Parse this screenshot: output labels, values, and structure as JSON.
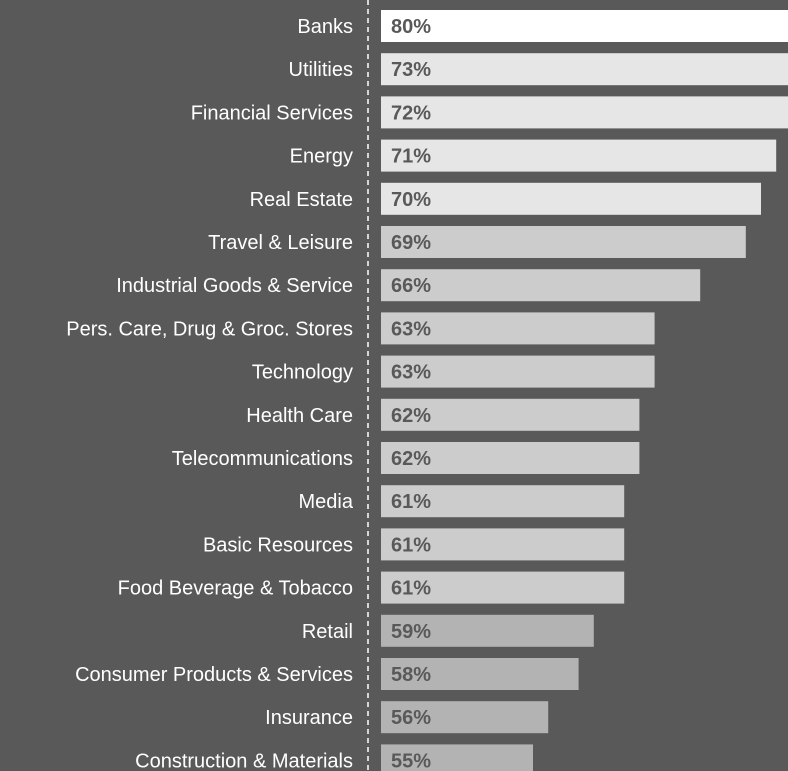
{
  "chart_data": {
    "type": "bar",
    "orientation": "horizontal",
    "categories": [
      "Banks",
      "Utilities",
      "Financial Services",
      "Energy",
      "Real Estate",
      "Travel & Leisure",
      "Industrial Goods & Service",
      "Pers. Care, Drug & Groc. Stores",
      "Technology",
      "Health Care",
      "Telecommunications",
      "Media",
      "Basic Resources",
      "Food Beverage & Tobacco",
      "Retail",
      "Consumer Products & Services",
      "Insurance",
      "Construction & Materials"
    ],
    "values": [
      80,
      73,
      72,
      71,
      70,
      69,
      66,
      63,
      63,
      62,
      62,
      61,
      61,
      61,
      59,
      58,
      56,
      55
    ],
    "value_labels": [
      "80%",
      "73%",
      "72%",
      "71%",
      "70%",
      "69%",
      "66%",
      "63%",
      "63%",
      "62%",
      "62%",
      "61%",
      "61%",
      "61%",
      "59%",
      "58%",
      "56%",
      "55%"
    ],
    "xlim": [
      45,
      80
    ],
    "title": "",
    "xlabel": "",
    "ylabel": "",
    "grid": false,
    "legend": "none",
    "colors": {
      "background": "#595959",
      "category_text": "#ffffff",
      "value_text": "#595959",
      "axis_line": "#ffffff",
      "bar_top": "#ffffff",
      "bar_high": "#e6e6e6",
      "bar_mid": "#cccccc",
      "bar_low": "#b3b3b3"
    }
  }
}
